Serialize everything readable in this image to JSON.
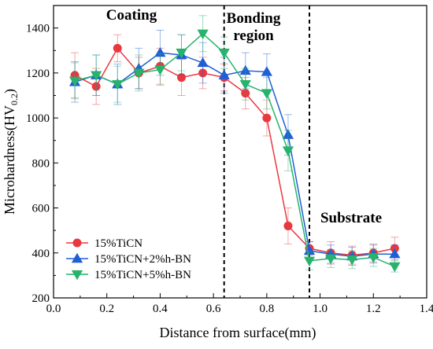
{
  "chart_data": {
    "type": "line",
    "xlabel": "Distance from surface(mm)",
    "ylabel": "Microhardness(HV",
    "ylabel_subscript": "0.2",
    "ylabel_close": ")",
    "xlim": [
      0.0,
      1.4
    ],
    "ylim": [
      200,
      1500
    ],
    "x_ticks": [
      "0.0",
      "0.2",
      "0.4",
      "0.6",
      "0.8",
      "1.0",
      "1.2",
      "1.4"
    ],
    "y_ticks": [
      "200",
      "400",
      "600",
      "800",
      "1000",
      "1200",
      "1400"
    ],
    "regions": [
      {
        "label": "Coating"
      },
      {
        "label": "Bonding"
      },
      {
        "label": "region"
      },
      {
        "label": "Substrate"
      }
    ],
    "boundaries": [
      0.64,
      0.96
    ],
    "series": [
      {
        "name": "15%TiCN",
        "color": "#e8393f",
        "marker": "circle",
        "x": [
          0.08,
          0.16,
          0.24,
          0.32,
          0.4,
          0.48,
          0.56,
          0.64,
          0.72,
          0.8,
          0.88,
          0.96,
          1.04,
          1.12,
          1.2,
          1.28
        ],
        "y": [
          1190,
          1140,
          1310,
          1200,
          1230,
          1180,
          1200,
          1180,
          1110,
          1000,
          520,
          420,
          400,
          390,
          400,
          420
        ],
        "err": [
          100,
          80,
          60,
          70,
          80,
          80,
          70,
          60,
          70,
          80,
          80,
          30,
          50,
          40,
          40,
          50
        ]
      },
      {
        "name": "15%TiCN+2%h-BN",
        "color": "#1f5fd6",
        "marker": "triangle-up",
        "x": [
          0.08,
          0.16,
          0.24,
          0.32,
          0.4,
          0.48,
          0.56,
          0.64,
          0.72,
          0.8,
          0.88,
          0.96,
          1.04,
          1.12,
          1.2,
          1.28
        ],
        "y": [
          1160,
          1190,
          1150,
          1220,
          1290,
          1280,
          1245,
          1190,
          1210,
          1205,
          925,
          410,
          395,
          385,
          395,
          395
        ],
        "err": [
          90,
          90,
          90,
          90,
          100,
          90,
          90,
          80,
          80,
          80,
          90,
          40,
          40,
          40,
          40,
          40
        ]
      },
      {
        "name": "15%TiCN+5%h-BN",
        "color": "#27b36b",
        "marker": "triangle-down",
        "x": [
          0.08,
          0.16,
          0.24,
          0.32,
          0.4,
          0.48,
          0.56,
          0.64,
          0.72,
          0.8,
          0.88,
          0.96,
          1.04,
          1.12,
          1.2,
          1.28
        ],
        "y": [
          1165,
          1190,
          1150,
          1200,
          1215,
          1290,
          1375,
          1290,
          1150,
          1110,
          855,
          365,
          375,
          370,
          380,
          340
        ],
        "err": [
          80,
          90,
          80,
          80,
          70,
          80,
          80,
          70,
          70,
          70,
          90,
          40,
          40,
          40,
          40,
          25
        ]
      }
    ],
    "legend": {
      "position": "lower-left"
    },
    "grid": false
  }
}
